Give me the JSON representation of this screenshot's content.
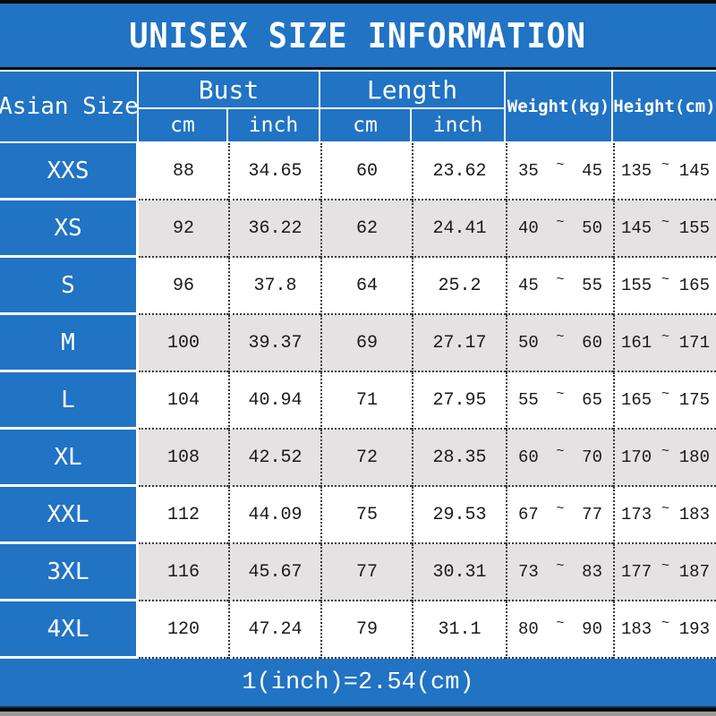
{
  "title": "UNISEX SIZE INFORMATION",
  "header": {
    "size_col": "Asian Size",
    "bust": {
      "label": "Bust",
      "units": [
        "cm",
        "inch"
      ]
    },
    "length": {
      "label": "Length",
      "units": [
        "cm",
        "inch"
      ]
    },
    "weight": "Weight(kg)",
    "height": "Height(cm)"
  },
  "tilde": "~",
  "rows": [
    {
      "size": "XXS",
      "bust_cm": "88",
      "bust_inch": "34.65",
      "length_cm": "60",
      "length_inch": "23.62",
      "weight_min": "35",
      "weight_max": "45",
      "height_min": "135",
      "height_max": "145"
    },
    {
      "size": "XS",
      "bust_cm": "92",
      "bust_inch": "36.22",
      "length_cm": "62",
      "length_inch": "24.41",
      "weight_min": "40",
      "weight_max": "50",
      "height_min": "145",
      "height_max": "155"
    },
    {
      "size": "S",
      "bust_cm": "96",
      "bust_inch": "37.8",
      "length_cm": "64",
      "length_inch": "25.2",
      "weight_min": "45",
      "weight_max": "55",
      "height_min": "155",
      "height_max": "165"
    },
    {
      "size": "M",
      "bust_cm": "100",
      "bust_inch": "39.37",
      "length_cm": "69",
      "length_inch": "27.17",
      "weight_min": "50",
      "weight_max": "60",
      "height_min": "161",
      "height_max": "171"
    },
    {
      "size": "L",
      "bust_cm": "104",
      "bust_inch": "40.94",
      "length_cm": "71",
      "length_inch": "27.95",
      "weight_min": "55",
      "weight_max": "65",
      "height_min": "165",
      "height_max": "175"
    },
    {
      "size": "XL",
      "bust_cm": "108",
      "bust_inch": "42.52",
      "length_cm": "72",
      "length_inch": "28.35",
      "weight_min": "60",
      "weight_max": "70",
      "height_min": "170",
      "height_max": "180"
    },
    {
      "size": "XXL",
      "bust_cm": "112",
      "bust_inch": "44.09",
      "length_cm": "75",
      "length_inch": "29.53",
      "weight_min": "67",
      "weight_max": "77",
      "height_min": "173",
      "height_max": "183"
    },
    {
      "size": "3XL",
      "bust_cm": "116",
      "bust_inch": "45.67",
      "length_cm": "77",
      "length_inch": "30.31",
      "weight_min": "73",
      "weight_max": "83",
      "height_min": "177",
      "height_max": "187"
    },
    {
      "size": "4XL",
      "bust_cm": "120",
      "bust_inch": "47.24",
      "length_cm": "79",
      "length_inch": "31.1",
      "weight_min": "80",
      "weight_max": "90",
      "height_min": "183",
      "height_max": "193"
    }
  ],
  "footer": "1(inch)=2.54(cm)",
  "colors": {
    "blue": "#2173c4",
    "row": "#ffffff",
    "alt_row": "#e4e2e3",
    "dotted_border": "#3a3a3a"
  }
}
